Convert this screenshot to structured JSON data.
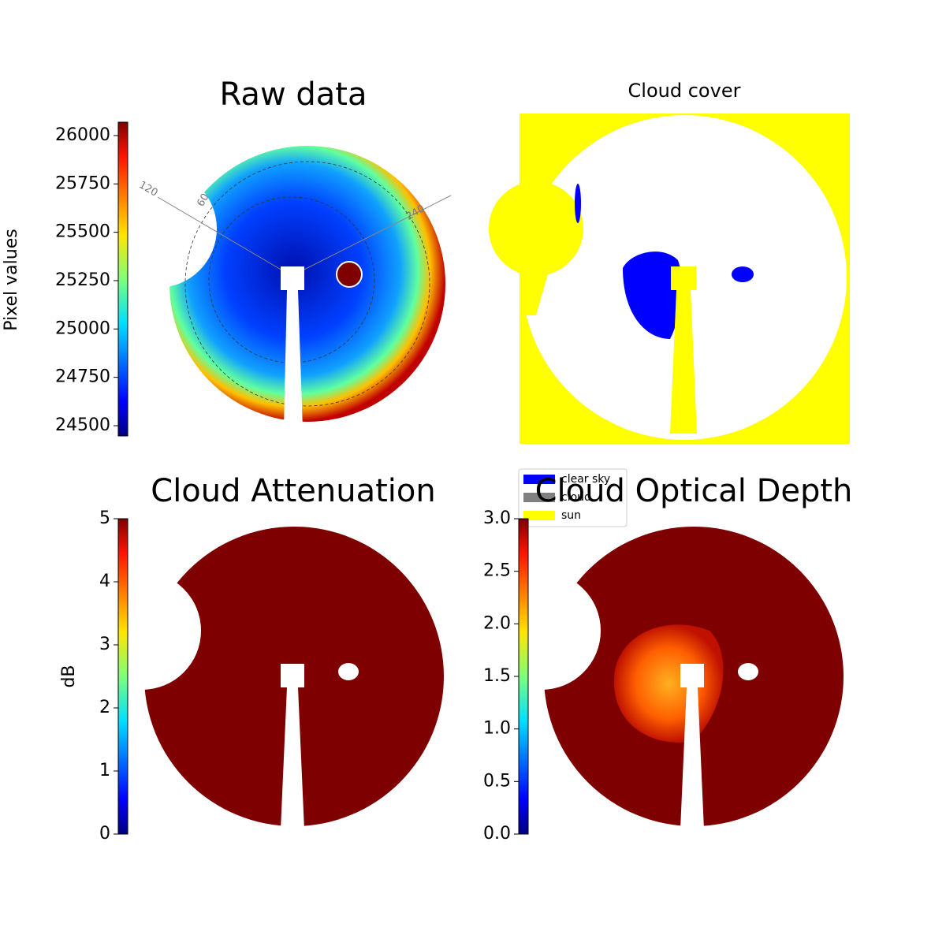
{
  "chart_data": [
    {
      "type": "image",
      "title": "Raw data",
      "colorbar": {
        "label": "Pixel values",
        "colormap": "jet",
        "lim": [
          24447,
          26069
        ],
        "ticks": [
          24500,
          24750,
          25000,
          25250,
          25500,
          25750,
          26000
        ]
      },
      "annotations": [
        "120",
        "60",
        "240"
      ]
    },
    {
      "type": "classification",
      "title": "Cloud cover",
      "legend": [
        {
          "name": "clear sky",
          "color": "#0000ff"
        },
        {
          "name": "cloud",
          "color": "#808080"
        },
        {
          "name": "sun",
          "color": "#ffff00"
        }
      ]
    },
    {
      "type": "image",
      "title": "Cloud Attenuation",
      "colorbar": {
        "label": "dB",
        "colormap": "jet",
        "lim": [
          0,
          5
        ],
        "ticks": [
          0,
          1,
          2,
          3,
          4,
          5
        ]
      }
    },
    {
      "type": "image",
      "title": "Cloud Optical Depth",
      "colorbar": {
        "colormap": "jet",
        "lim": [
          0,
          3
        ],
        "ticks": [
          {
            "value": 0,
            "label": "0.0"
          },
          {
            "value": 0.5,
            "label": "0.5"
          },
          {
            "value": 1,
            "label": "1.0"
          },
          {
            "value": 1.5,
            "label": "1.5"
          },
          {
            "value": 2,
            "label": "2.0"
          },
          {
            "value": 2.5,
            "label": "2.5"
          },
          {
            "value": 3,
            "label": "3.0"
          }
        ]
      }
    }
  ]
}
